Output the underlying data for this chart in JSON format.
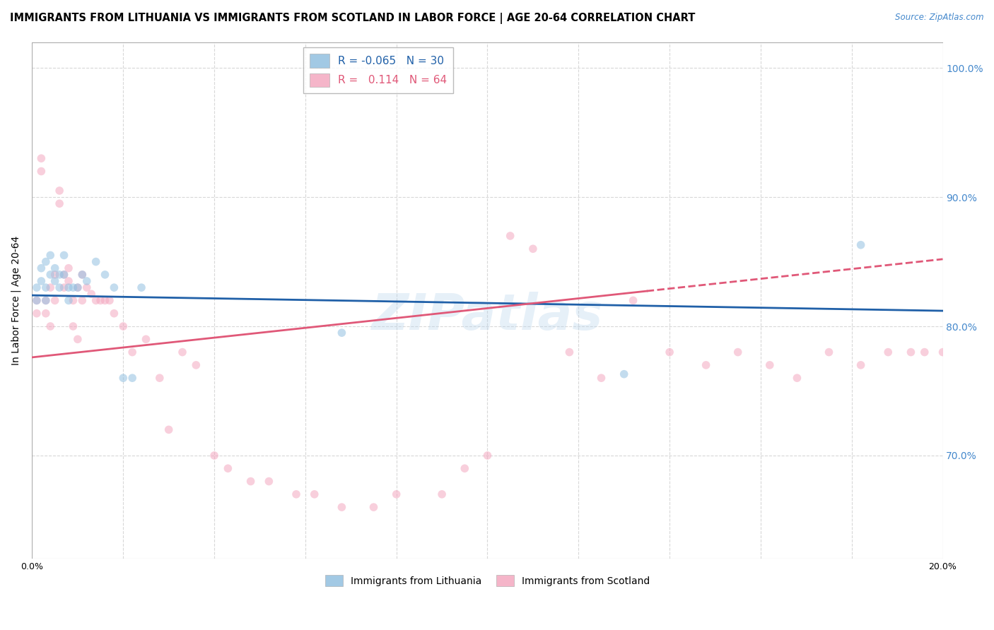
{
  "title": "IMMIGRANTS FROM LITHUANIA VS IMMIGRANTS FROM SCOTLAND IN LABOR FORCE | AGE 20-64 CORRELATION CHART",
  "source": "Source: ZipAtlas.com",
  "ylabel": "In Labor Force | Age 20-64",
  "xlim": [
    0.0,
    0.2
  ],
  "ylim": [
    0.62,
    1.02
  ],
  "xticks": [
    0.0,
    0.02,
    0.04,
    0.06,
    0.08,
    0.1,
    0.12,
    0.14,
    0.16,
    0.18,
    0.2
  ],
  "xticklabels_show": [
    "0.0%",
    "20.0%"
  ],
  "yticks": [
    0.7,
    0.8,
    0.9,
    1.0
  ],
  "yticklabels": [
    "70.0%",
    "80.0%",
    "90.0%",
    "100.0%"
  ],
  "watermark": "ZIPatlas",
  "lithuania_R": -0.065,
  "lithuania_N": 30,
  "scotland_R": 0.114,
  "scotland_N": 64,
  "lit_color": "#92c0e0",
  "sco_color": "#f4a8c0",
  "lit_line_color": "#2060a8",
  "sco_line_color": "#e05878",
  "background_color": "#ffffff",
  "grid_color": "#d8d8d8",
  "right_axis_color": "#4488cc",
  "title_fontsize": 10.5,
  "axis_fontsize": 10,
  "tick_fontsize": 9,
  "marker_size": 70,
  "marker_alpha": 0.55,
  "watermark_color": "#b8d4ec",
  "watermark_fontsize": 52,
  "watermark_alpha": 0.35,
  "lit_line_x0": 0.0,
  "lit_line_y0": 0.824,
  "lit_line_x1": 0.2,
  "lit_line_y1": 0.812,
  "sco_line_x0": 0.0,
  "sco_line_y0": 0.776,
  "sco_line_x1": 0.2,
  "sco_line_y1": 0.852,
  "sco_dash_split": 0.135,
  "lithuania_x": [
    0.001,
    0.001,
    0.002,
    0.002,
    0.003,
    0.003,
    0.003,
    0.004,
    0.004,
    0.005,
    0.005,
    0.006,
    0.006,
    0.007,
    0.007,
    0.008,
    0.008,
    0.009,
    0.01,
    0.011,
    0.012,
    0.014,
    0.016,
    0.018,
    0.02,
    0.022,
    0.024,
    0.068,
    0.13,
    0.182
  ],
  "lithuania_y": [
    0.83,
    0.82,
    0.835,
    0.845,
    0.85,
    0.83,
    0.82,
    0.84,
    0.855,
    0.845,
    0.835,
    0.84,
    0.83,
    0.855,
    0.84,
    0.83,
    0.82,
    0.83,
    0.83,
    0.84,
    0.835,
    0.85,
    0.84,
    0.83,
    0.76,
    0.76,
    0.83,
    0.795,
    0.763,
    0.863
  ],
  "scotland_x": [
    0.001,
    0.001,
    0.002,
    0.002,
    0.003,
    0.003,
    0.004,
    0.004,
    0.005,
    0.005,
    0.006,
    0.006,
    0.007,
    0.007,
    0.008,
    0.008,
    0.009,
    0.009,
    0.01,
    0.01,
    0.011,
    0.011,
    0.012,
    0.013,
    0.014,
    0.015,
    0.016,
    0.017,
    0.018,
    0.02,
    0.022,
    0.025,
    0.028,
    0.03,
    0.033,
    0.036,
    0.04,
    0.043,
    0.048,
    0.052,
    0.058,
    0.062,
    0.068,
    0.075,
    0.08,
    0.09,
    0.095,
    0.1,
    0.105,
    0.11,
    0.118,
    0.125,
    0.132,
    0.14,
    0.148,
    0.155,
    0.162,
    0.168,
    0.175,
    0.182,
    0.188,
    0.193,
    0.196,
    0.2
  ],
  "scotland_y": [
    0.82,
    0.81,
    0.93,
    0.92,
    0.82,
    0.81,
    0.83,
    0.8,
    0.84,
    0.82,
    0.905,
    0.895,
    0.84,
    0.83,
    0.845,
    0.835,
    0.82,
    0.8,
    0.83,
    0.79,
    0.84,
    0.82,
    0.83,
    0.825,
    0.82,
    0.82,
    0.82,
    0.82,
    0.81,
    0.8,
    0.78,
    0.79,
    0.76,
    0.72,
    0.78,
    0.77,
    0.7,
    0.69,
    0.68,
    0.68,
    0.67,
    0.67,
    0.66,
    0.66,
    0.67,
    0.67,
    0.69,
    0.7,
    0.87,
    0.86,
    0.78,
    0.76,
    0.82,
    0.78,
    0.77,
    0.78,
    0.77,
    0.76,
    0.78,
    0.77,
    0.78,
    0.78,
    0.78,
    0.78
  ]
}
